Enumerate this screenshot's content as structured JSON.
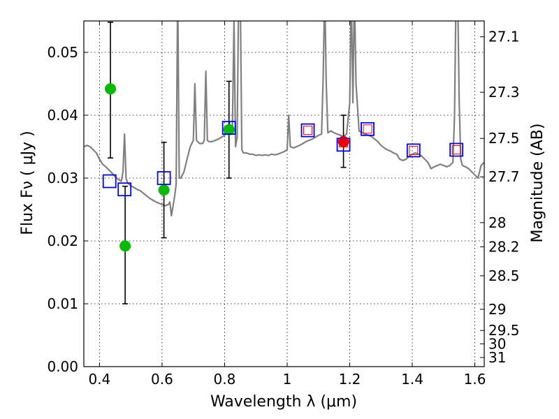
{
  "chart_data": {
    "type": "scatter",
    "title": "",
    "xlabel": "Wavelength  λ (μm)",
    "ylabel": "Flux  Fν  ( μJy )",
    "y2label": "Magnitude (AB)",
    "xlim": [
      0.35,
      1.63
    ],
    "ylim": [
      0.0,
      0.055
    ],
    "grid": true,
    "x_ticks": [
      {
        "value": 0.4,
        "label": "0.4"
      },
      {
        "value": 0.6,
        "label": "0.6"
      },
      {
        "value": 0.8,
        "label": "0.8"
      },
      {
        "value": 1.0,
        "label": "1"
      },
      {
        "value": 1.2,
        "label": "1.2"
      },
      {
        "value": 1.4,
        "label": "1.4"
      },
      {
        "value": 1.6,
        "label": "1.6"
      }
    ],
    "y_ticks": [
      {
        "value": 0.0,
        "label": "0.00"
      },
      {
        "value": 0.01,
        "label": "0.01"
      },
      {
        "value": 0.02,
        "label": "0.02"
      },
      {
        "value": 0.03,
        "label": "0.03"
      },
      {
        "value": 0.04,
        "label": "0.04"
      },
      {
        "value": 0.05,
        "label": "0.05"
      }
    ],
    "mag_ticks": [
      {
        "mag": 27.1,
        "label": "27.1"
      },
      {
        "mag": 27.3,
        "label": "27.3"
      },
      {
        "mag": 27.5,
        "label": "27.5"
      },
      {
        "mag": 27.7,
        "label": "27.7"
      },
      {
        "mag": 28.0,
        "label": "28"
      },
      {
        "mag": 28.2,
        "label": "28.2"
      },
      {
        "mag": 28.5,
        "label": "28.5"
      },
      {
        "mag": 29.0,
        "label": "29"
      },
      {
        "mag": 29.5,
        "label": "29.5"
      },
      {
        "mag": 30.0,
        "label": "30"
      },
      {
        "mag": 31.0,
        "label": "31"
      }
    ],
    "series": [
      {
        "name": "Model spectrum",
        "kind": "line",
        "color": "#808080",
        "points": [
          [
            0.35,
            0.035
          ],
          [
            0.36,
            0.0352
          ],
          [
            0.37,
            0.035
          ],
          [
            0.38,
            0.0345
          ],
          [
            0.39,
            0.034
          ],
          [
            0.4,
            0.033
          ],
          [
            0.41,
            0.0322
          ],
          [
            0.42,
            0.0318
          ],
          [
            0.43,
            0.0313
          ],
          [
            0.44,
            0.0308
          ],
          [
            0.45,
            0.0302
          ],
          [
            0.46,
            0.0298
          ],
          [
            0.47,
            0.0295
          ],
          [
            0.475,
            0.031
          ],
          [
            0.48,
            0.037
          ],
          [
            0.485,
            0.03
          ],
          [
            0.49,
            0.0292
          ],
          [
            0.5,
            0.0288
          ],
          [
            0.51,
            0.0285
          ],
          [
            0.52,
            0.0282
          ],
          [
            0.53,
            0.028
          ],
          [
            0.54,
            0.0276
          ],
          [
            0.55,
            0.0272
          ],
          [
            0.56,
            0.0268
          ],
          [
            0.57,
            0.0265
          ],
          [
            0.58,
            0.0262
          ],
          [
            0.59,
            0.026
          ],
          [
            0.6,
            0.0258
          ],
          [
            0.61,
            0.0256
          ],
          [
            0.62,
            0.0258
          ],
          [
            0.625,
            0.0262
          ],
          [
            0.63,
            0.024
          ],
          [
            0.635,
            0.0255
          ],
          [
            0.64,
            0.027
          ],
          [
            0.645,
            0.029
          ],
          [
            0.65,
            0.06
          ],
          [
            0.655,
            0.03
          ],
          [
            0.66,
            0.03
          ],
          [
            0.67,
            0.031
          ],
          [
            0.68,
            0.033
          ],
          [
            0.69,
            0.035
          ],
          [
            0.7,
            0.036
          ],
          [
            0.705,
            0.045
          ],
          [
            0.71,
            0.036
          ],
          [
            0.72,
            0.0355
          ],
          [
            0.73,
            0.0355
          ],
          [
            0.735,
            0.036
          ],
          [
            0.74,
            0.047
          ],
          [
            0.745,
            0.036
          ],
          [
            0.75,
            0.0358
          ],
          [
            0.76,
            0.0358
          ],
          [
            0.77,
            0.036
          ],
          [
            0.78,
            0.0362
          ],
          [
            0.79,
            0.0365
          ],
          [
            0.8,
            0.0368
          ],
          [
            0.81,
            0.0375
          ],
          [
            0.815,
            0.039
          ],
          [
            0.82,
            0.037
          ],
          [
            0.825,
            0.038
          ],
          [
            0.83,
            0.055
          ],
          [
            0.835,
            0.035
          ],
          [
            0.84,
            0.0365
          ],
          [
            0.845,
            0.06
          ],
          [
            0.85,
            0.06
          ],
          [
            0.855,
            0.0345
          ],
          [
            0.86,
            0.034
          ],
          [
            0.87,
            0.034
          ],
          [
            0.88,
            0.0338
          ],
          [
            0.89,
            0.0338
          ],
          [
            0.9,
            0.0336
          ],
          [
            0.91,
            0.0337
          ],
          [
            0.92,
            0.0336
          ],
          [
            0.93,
            0.0337
          ],
          [
            0.94,
            0.0336
          ],
          [
            0.95,
            0.0338
          ],
          [
            0.96,
            0.0337
          ],
          [
            0.97,
            0.0338
          ],
          [
            0.98,
            0.034
          ],
          [
            0.99,
            0.0342
          ],
          [
            1.0,
            0.0345
          ],
          [
            1.005,
            0.04
          ],
          [
            1.01,
            0.035
          ],
          [
            1.02,
            0.0348
          ],
          [
            1.03,
            0.035
          ],
          [
            1.04,
            0.0352
          ],
          [
            1.05,
            0.0355
          ],
          [
            1.06,
            0.0358
          ],
          [
            1.07,
            0.036
          ],
          [
            1.08,
            0.0362
          ],
          [
            1.09,
            0.0365
          ],
          [
            1.1,
            0.0368
          ],
          [
            1.11,
            0.037
          ],
          [
            1.115,
            0.046
          ],
          [
            1.12,
            0.06
          ],
          [
            1.125,
            0.045
          ],
          [
            1.13,
            0.0372
          ],
          [
            1.14,
            0.0375
          ],
          [
            1.15,
            0.0372
          ],
          [
            1.16,
            0.037
          ],
          [
            1.17,
            0.0368
          ],
          [
            1.18,
            0.0366
          ],
          [
            1.19,
            0.037
          ],
          [
            1.2,
            0.042
          ],
          [
            1.205,
            0.06
          ],
          [
            1.21,
            0.042
          ],
          [
            1.215,
            0.06
          ],
          [
            1.22,
            0.045
          ],
          [
            1.23,
            0.0375
          ],
          [
            1.24,
            0.0372
          ],
          [
            1.25,
            0.037
          ],
          [
            1.26,
            0.0368
          ],
          [
            1.27,
            0.0366
          ],
          [
            1.28,
            0.0362
          ],
          [
            1.29,
            0.0358
          ],
          [
            1.3,
            0.0352
          ],
          [
            1.31,
            0.0348
          ],
          [
            1.32,
            0.0345
          ],
          [
            1.33,
            0.0343
          ],
          [
            1.34,
            0.034
          ],
          [
            1.35,
            0.0338
          ],
          [
            1.36,
            0.033
          ],
          [
            1.37,
            0.0328
          ],
          [
            1.38,
            0.033
          ],
          [
            1.39,
            0.0335
          ],
          [
            1.4,
            0.0338
          ],
          [
            1.41,
            0.034
          ],
          [
            1.42,
            0.0338
          ],
          [
            1.43,
            0.0335
          ],
          [
            1.44,
            0.033
          ],
          [
            1.45,
            0.0325
          ],
          [
            1.46,
            0.0315
          ],
          [
            1.47,
            0.0318
          ],
          [
            1.48,
            0.032
          ],
          [
            1.49,
            0.0322
          ],
          [
            1.5,
            0.032
          ],
          [
            1.51,
            0.0318
          ],
          [
            1.52,
            0.032
          ],
          [
            1.53,
            0.0325
          ],
          [
            1.535,
            0.04
          ],
          [
            1.54,
            0.06
          ],
          [
            1.545,
            0.06
          ],
          [
            1.55,
            0.042
          ],
          [
            1.555,
            0.033
          ],
          [
            1.56,
            0.032
          ],
          [
            1.57,
            0.0318
          ],
          [
            1.58,
            0.0315
          ],
          [
            1.59,
            0.031
          ],
          [
            1.6,
            0.0305
          ],
          [
            1.61,
            0.03
          ],
          [
            1.615,
            0.031
          ],
          [
            1.62,
            0.032
          ],
          [
            1.63,
            0.0325
          ]
        ]
      },
      {
        "name": "Observed photometry (green)",
        "kind": "points",
        "color": "#00bb00",
        "points": [
          {
            "x": 0.435,
            "y": 0.0442,
            "yerr_low": 0.0332,
            "yerr_high": 0.0548
          },
          {
            "x": 0.482,
            "y": 0.0192,
            "yerr_low": 0.01,
            "yerr_high": 0.0287
          },
          {
            "x": 0.606,
            "y": 0.0281,
            "yerr_low": 0.0205,
            "yerr_high": 0.0357
          },
          {
            "x": 0.814,
            "y": 0.0377,
            "yerr_low": 0.03,
            "yerr_high": 0.0454
          }
        ]
      },
      {
        "name": "Observed photometry (red)",
        "kind": "points",
        "color": "#ee0000",
        "points": [
          {
            "x": 1.18,
            "y": 0.0358,
            "yerr_low": 0.0317,
            "yerr_high": 0.04
          }
        ]
      },
      {
        "name": "Model photometry (blue squares)",
        "kind": "squares",
        "color": "#0000ee",
        "points": [
          {
            "x": 0.432,
            "y": 0.0295
          },
          {
            "x": 0.48,
            "y": 0.0282
          },
          {
            "x": 0.606,
            "y": 0.03
          },
          {
            "x": 0.814,
            "y": 0.038
          },
          {
            "x": 1.066,
            "y": 0.0376
          },
          {
            "x": 1.18,
            "y": 0.0353
          },
          {
            "x": 1.257,
            "y": 0.0378
          },
          {
            "x": 1.404,
            "y": 0.0344
          },
          {
            "x": 1.541,
            "y": 0.0345
          }
        ]
      },
      {
        "name": "Red upper limits (small squares)",
        "kind": "small-squares",
        "color": "#ee0000",
        "points": [
          {
            "x": 1.066,
            "y": 0.0376
          },
          {
            "x": 1.18,
            "y": 0.0356
          },
          {
            "x": 1.257,
            "y": 0.0378
          },
          {
            "x": 1.404,
            "y": 0.0344
          },
          {
            "x": 1.541,
            "y": 0.0345
          }
        ]
      }
    ]
  }
}
